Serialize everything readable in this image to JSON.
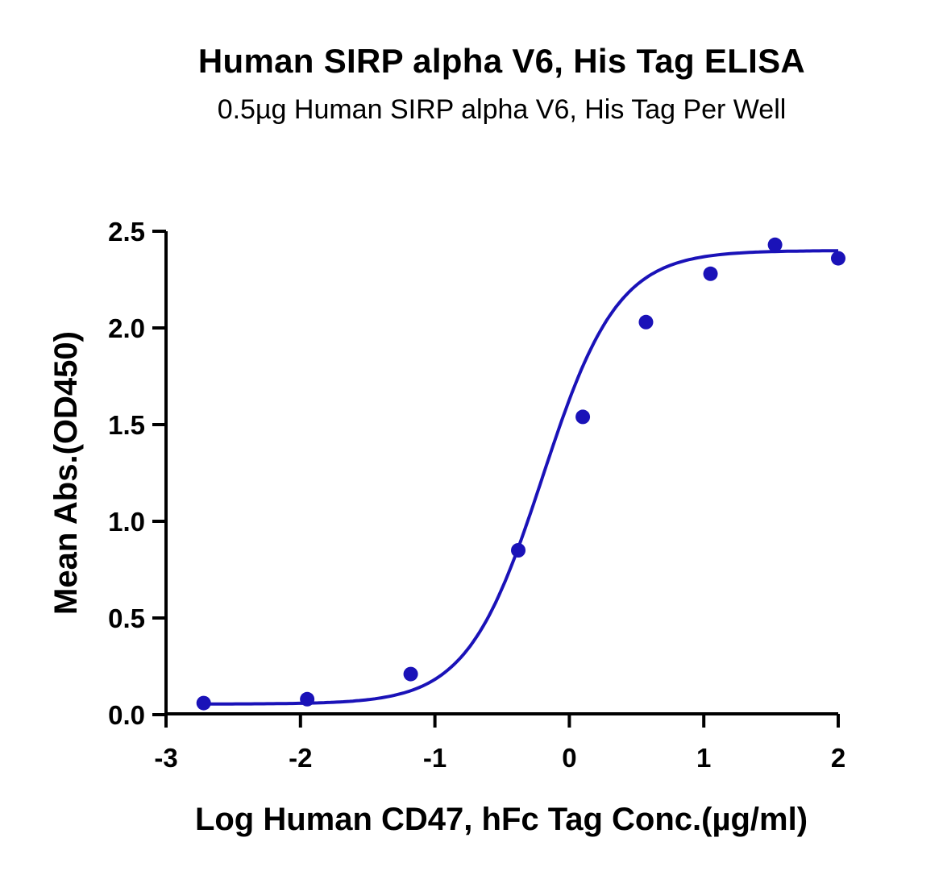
{
  "chart_data": {
    "type": "scatter",
    "title": "Human SIRP alpha V6, His Tag ELISA",
    "subtitle": "0.5µg Human SIRP alpha V6, His Tag Per Well",
    "xlabel": "Log Human CD47, hFc Tag Conc.(µg/ml)",
    "ylabel": "Mean Abs.(OD450)",
    "xlim": [
      -3,
      2
    ],
    "ylim": [
      0,
      2.5
    ],
    "xticks": [
      "-3",
      "-2",
      "-1",
      "0",
      "1",
      "2"
    ],
    "yticks": [
      "0.0",
      "0.5",
      "1.0",
      "1.5",
      "2.0",
      "2.5"
    ],
    "grid": false,
    "colors": {
      "series": "#1a12b8"
    },
    "series": [
      {
        "x": [
          -2.72,
          -1.95,
          -1.18,
          -0.38,
          0.1,
          0.57,
          1.05,
          1.53,
          2.0
        ],
        "y": [
          0.06,
          0.08,
          0.21,
          0.85,
          1.54,
          2.03,
          2.28,
          2.43,
          2.36
        ],
        "fit": "four-parameter logistic"
      }
    ]
  }
}
